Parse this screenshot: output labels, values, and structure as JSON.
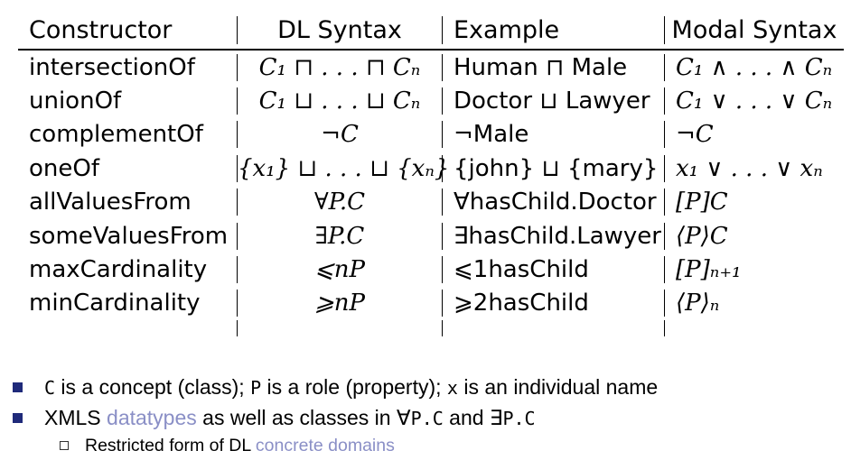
{
  "table": {
    "headers": [
      "Constructor",
      "DL Syntax",
      "Example",
      "Modal Syntax"
    ],
    "rows": [
      {
        "constructor": "intersectionOf",
        "dl": "C₁ ⊓ . . . ⊓ Cₙ",
        "example": "Human ⊓ Male",
        "modal": "C₁ ∧ . . . ∧ Cₙ"
      },
      {
        "constructor": "unionOf",
        "dl": "C₁ ⊔ . . . ⊔ Cₙ",
        "example": "Doctor ⊔ Lawyer",
        "modal": "C₁ ∨ . . . ∨ Cₙ"
      },
      {
        "constructor": "complementOf",
        "dl": "¬C",
        "example": "¬Male",
        "modal": "¬C"
      },
      {
        "constructor": "oneOf",
        "dl": "{x₁} ⊔ . . . ⊔ {xₙ}",
        "example": "{john} ⊔ {mary}",
        "modal": "x₁ ∨ . . . ∨ xₙ"
      },
      {
        "constructor": "allValuesFrom",
        "dl": "∀P.C",
        "example": "∀hasChild.Doctor",
        "modal": "[P]C"
      },
      {
        "constructor": "someValuesFrom",
        "dl": "∃P.C",
        "example": "∃hasChild.Lawyer",
        "modal": "⟨P⟩C"
      },
      {
        "constructor": "maxCardinality",
        "dl": "⩽nP",
        "example": "⩽1hasChild",
        "modal": "[P]ₙ₊₁"
      },
      {
        "constructor": "minCardinality",
        "dl": "⩾nP",
        "example": "⩾2hasChild",
        "modal": "⟨P⟩ₙ"
      }
    ]
  },
  "bullets": {
    "b1": {
      "c": "C",
      "t1": " is a concept (class); ",
      "p": "P",
      "t2": " is a role (property); ",
      "x": "x",
      "t3": " is an individual name"
    },
    "b2": {
      "t1": "XMLS ",
      "link": "datatypes",
      "t2": " as well as classes in ∀",
      "code1": "P.C",
      "t3": " and ∃",
      "code2": "P.C"
    },
    "sub": {
      "t1": "Restricted form of DL ",
      "link": "concrete domains"
    }
  },
  "colors": {
    "bullet": "#1f2a7a",
    "link": "#8a8fc6"
  },
  "icons": {
    "bullet": "filled-square-bullet-icon",
    "sub_bullet": "hollow-square-bullet-icon"
  }
}
